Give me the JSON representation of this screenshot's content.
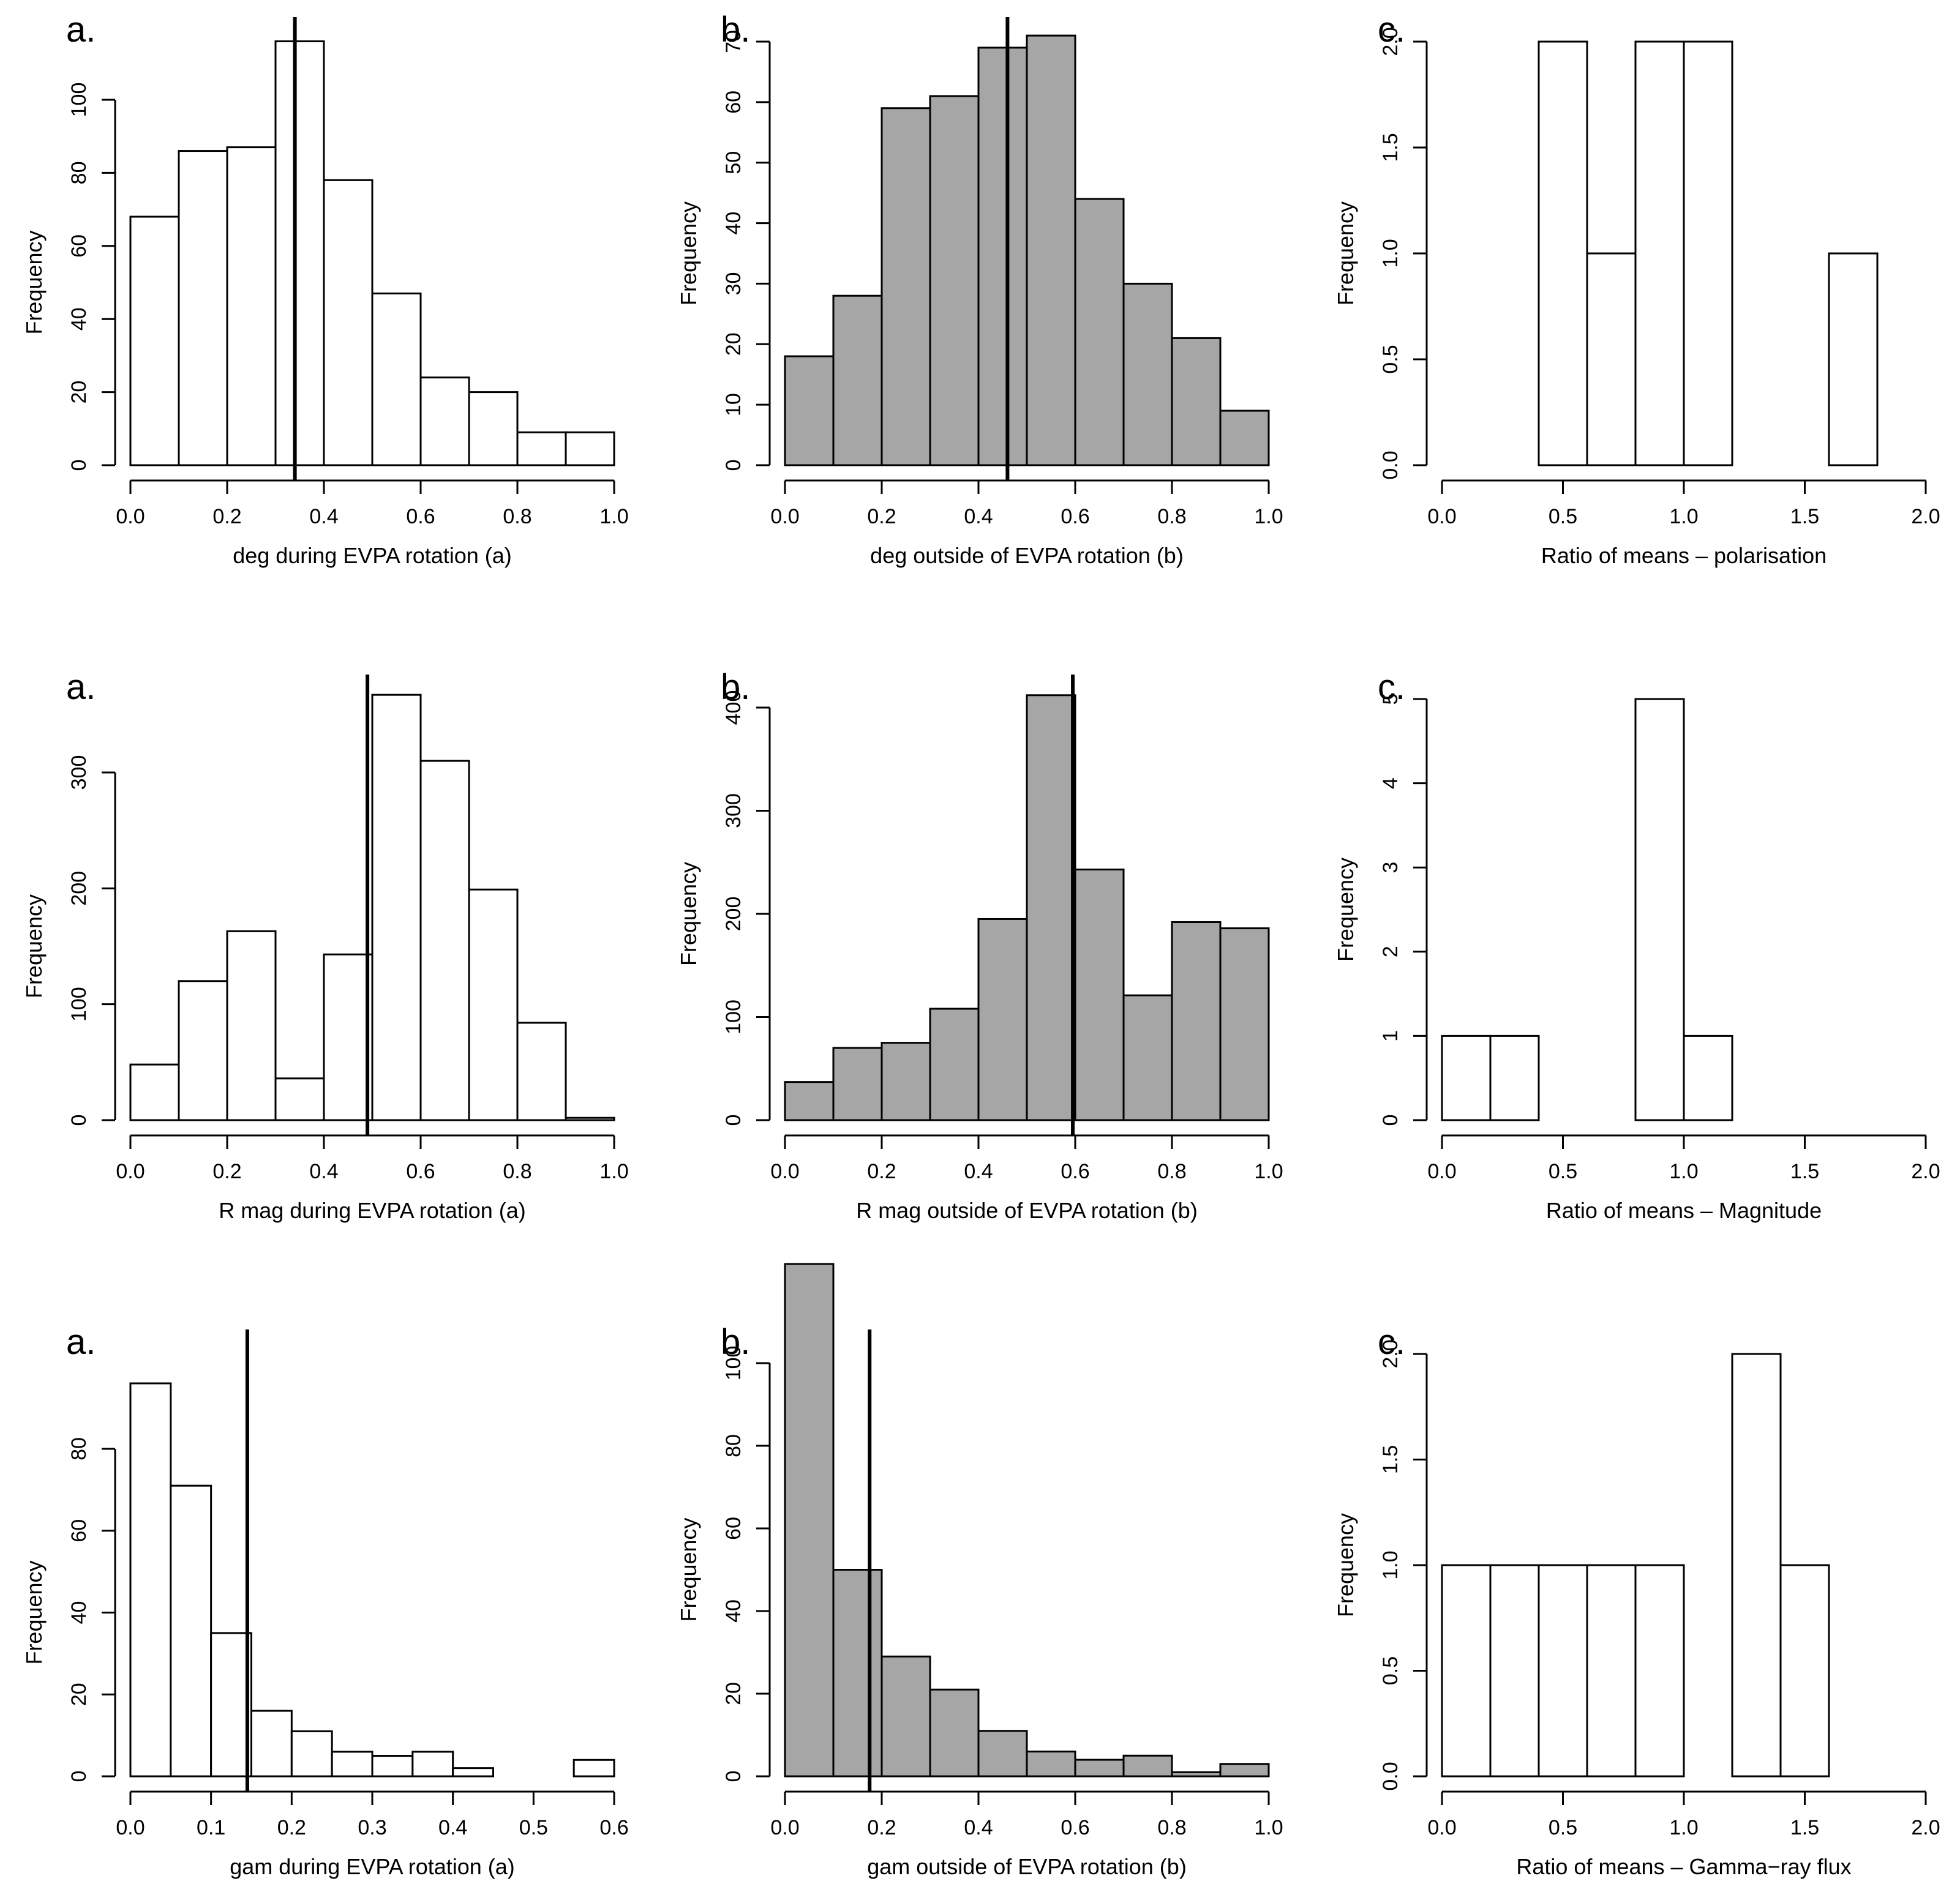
{
  "chart_data": [
    {
      "type": "bar",
      "panel": "a.",
      "xlabel": "deg during EVPA rotation (a)",
      "ylabel": "Frequency",
      "fill": "#ffffff",
      "xlim": [
        0,
        1
      ],
      "ylim": [
        0,
        100
      ],
      "xticks": [
        0,
        0.2,
        0.4,
        0.6,
        0.8,
        1
      ],
      "xtick_labels": [
        "0.0",
        "0.2",
        "0.4",
        "0.6",
        "0.8",
        "1.0"
      ],
      "yticks": [
        0,
        20,
        40,
        60,
        80,
        100
      ],
      "ytick_labels": [
        "0",
        "20",
        "40",
        "60",
        "80",
        "100"
      ],
      "bin_edges": [
        0,
        0.1,
        0.2,
        0.3,
        0.4,
        0.5,
        0.6,
        0.7,
        0.8,
        0.9,
        1.0
      ],
      "values": [
        68,
        86,
        87,
        116,
        78,
        47,
        24,
        20,
        9,
        9
      ],
      "mean_line": 0.34
    },
    {
      "type": "bar",
      "panel": "b.",
      "xlabel": "deg outside of EVPA rotation (b)",
      "ylabel": "Frequency",
      "fill": "#a6a6a6",
      "xlim": [
        0,
        1
      ],
      "ylim": [
        0,
        70
      ],
      "xticks": [
        0,
        0.2,
        0.4,
        0.6,
        0.8,
        1
      ],
      "xtick_labels": [
        "0.0",
        "0.2",
        "0.4",
        "0.6",
        "0.8",
        "1.0"
      ],
      "yticks": [
        0,
        10,
        20,
        30,
        40,
        50,
        60,
        70
      ],
      "ytick_labels": [
        "0",
        "10",
        "20",
        "30",
        "40",
        "50",
        "60",
        "70"
      ],
      "bin_edges": [
        0,
        0.1,
        0.2,
        0.3,
        0.4,
        0.5,
        0.6,
        0.7,
        0.8,
        0.9,
        1.0
      ],
      "values": [
        18,
        28,
        59,
        61,
        69,
        71,
        44,
        30,
        21,
        9
      ],
      "mean_line": 0.46
    },
    {
      "type": "bar",
      "panel": "c.",
      "xlabel": "Ratio of means –  polarisation",
      "ylabel": "Frequency",
      "fill": "#ffffff",
      "xlim": [
        0,
        2
      ],
      "ylim": [
        0,
        2
      ],
      "xticks": [
        0,
        0.5,
        1,
        1.5,
        2
      ],
      "xtick_labels": [
        "0.0",
        "0.5",
        "1.0",
        "1.5",
        "2.0"
      ],
      "yticks": [
        0,
        0.5,
        1,
        1.5,
        2
      ],
      "ytick_labels": [
        "0.0",
        "0.5",
        "1.0",
        "1.5",
        "2.0"
      ],
      "bin_edges": [
        0,
        0.2,
        0.4,
        0.6,
        0.8,
        1.0,
        1.2,
        1.4,
        1.6,
        1.8
      ],
      "values": [
        0,
        0,
        2,
        1,
        2,
        2,
        0,
        0,
        1
      ],
      "mean_line": null
    },
    {
      "type": "bar",
      "panel": "a.",
      "xlabel": "R mag during EVPA rotation (a)",
      "ylabel": "Frequency",
      "fill": "#ffffff",
      "xlim": [
        0,
        1
      ],
      "ylim": [
        0,
        300
      ],
      "xticks": [
        0,
        0.2,
        0.4,
        0.6,
        0.8,
        1
      ],
      "xtick_labels": [
        "0.0",
        "0.2",
        "0.4",
        "0.6",
        "0.8",
        "1.0"
      ],
      "yticks": [
        0,
        100,
        200,
        300
      ],
      "ytick_labels": [
        "0",
        "100",
        "200",
        "300"
      ],
      "bin_edges": [
        0,
        0.1,
        0.2,
        0.3,
        0.4,
        0.5,
        0.6,
        0.7,
        0.8,
        0.9,
        1.0
      ],
      "values": [
        48,
        120,
        163,
        36,
        143,
        367,
        310,
        199,
        84,
        2
      ],
      "mean_line": 0.49
    },
    {
      "type": "bar",
      "panel": "b.",
      "xlabel": "R mag outside of EVPA rotation (b)",
      "ylabel": "Frequency",
      "fill": "#a6a6a6",
      "xlim": [
        0,
        1
      ],
      "ylim": [
        0,
        400
      ],
      "xticks": [
        0,
        0.2,
        0.4,
        0.6,
        0.8,
        1
      ],
      "xtick_labels": [
        "0.0",
        "0.2",
        "0.4",
        "0.6",
        "0.8",
        "1.0"
      ],
      "yticks": [
        0,
        100,
        200,
        300,
        400
      ],
      "ytick_labels": [
        "0",
        "100",
        "200",
        "300",
        "400"
      ],
      "bin_edges": [
        0,
        0.1,
        0.2,
        0.3,
        0.4,
        0.5,
        0.6,
        0.7,
        0.8,
        0.9,
        1.0
      ],
      "values": [
        37,
        70,
        75,
        108,
        195,
        412,
        243,
        121,
        192,
        186
      ],
      "mean_line": 0.595
    },
    {
      "type": "bar",
      "panel": "c.",
      "xlabel": "Ratio of means –  Magnitude",
      "ylabel": "Frequency",
      "fill": "#ffffff",
      "xlim": [
        0,
        2
      ],
      "ylim": [
        0,
        5
      ],
      "xticks": [
        0,
        0.5,
        1,
        1.5,
        2
      ],
      "xtick_labels": [
        "0.0",
        "0.5",
        "1.0",
        "1.5",
        "2.0"
      ],
      "yticks": [
        0,
        1,
        2,
        3,
        4,
        5
      ],
      "ytick_labels": [
        "0",
        "1",
        "2",
        "3",
        "4",
        "5"
      ],
      "bin_edges": [
        0,
        0.2,
        0.4,
        0.6,
        0.8,
        1.0,
        1.2
      ],
      "values": [
        1,
        1,
        0,
        0,
        5,
        1
      ],
      "mean_line": null
    },
    {
      "type": "bar",
      "panel": "a.",
      "xlabel": "gam during EVPA rotation (a)",
      "ylabel": "Frequency",
      "fill": "#ffffff",
      "xlim": [
        0,
        0.6
      ],
      "ylim": [
        0,
        80
      ],
      "xticks": [
        0,
        0.1,
        0.2,
        0.3,
        0.4,
        0.5,
        0.6
      ],
      "xtick_labels": [
        "0.0",
        "0.1",
        "0.2",
        "0.3",
        "0.4",
        "0.5",
        "0.6"
      ],
      "yticks": [
        0,
        20,
        40,
        60,
        80
      ],
      "ytick_labels": [
        "0",
        "20",
        "40",
        "60",
        "80"
      ],
      "bin_edges": [
        0,
        0.05,
        0.1,
        0.15,
        0.2,
        0.25,
        0.3,
        0.35,
        0.4,
        0.45,
        0.5,
        0.55,
        0.6
      ],
      "values": [
        96,
        71,
        35,
        16,
        11,
        6,
        5,
        6,
        2,
        0,
        0,
        4
      ],
      "mean_line": 0.145
    },
    {
      "type": "bar",
      "panel": "b.",
      "xlabel": "gam outside of EVPA rotation (b)",
      "ylabel": "Frequency",
      "fill": "#a6a6a6",
      "xlim": [
        0,
        1
      ],
      "ylim": [
        0,
        100
      ],
      "xticks": [
        0,
        0.2,
        0.4,
        0.6,
        0.8,
        1
      ],
      "xtick_labels": [
        "0.0",
        "0.2",
        "0.4",
        "0.6",
        "0.8",
        "1.0"
      ],
      "yticks": [
        0,
        20,
        40,
        60,
        80,
        100
      ],
      "ytick_labels": [
        "0",
        "20",
        "40",
        "60",
        "80",
        "100"
      ],
      "bin_edges": [
        0,
        0.1,
        0.2,
        0.3,
        0.4,
        0.5,
        0.6,
        0.7,
        0.8,
        0.9,
        1.0
      ],
      "values": [
        124,
        50,
        29,
        21,
        11,
        6,
        4,
        5,
        1,
        3
      ],
      "mean_line": 0.175
    },
    {
      "type": "bar",
      "panel": "c.",
      "xlabel": "Ratio of means –  Gamma−ray flux",
      "ylabel": "Frequency",
      "fill": "#ffffff",
      "xlim": [
        0,
        2
      ],
      "ylim": [
        0,
        2
      ],
      "xticks": [
        0,
        0.5,
        1,
        1.5,
        2
      ],
      "xtick_labels": [
        "0.0",
        "0.5",
        "1.0",
        "1.5",
        "2.0"
      ],
      "yticks": [
        0,
        0.5,
        1,
        1.5,
        2
      ],
      "ytick_labels": [
        "0.0",
        "0.5",
        "1.0",
        "1.5",
        "2.0"
      ],
      "bin_edges": [
        0,
        0.2,
        0.4,
        0.6,
        0.8,
        1.0,
        1.2,
        1.4,
        1.6
      ],
      "values": [
        1,
        1,
        1,
        1,
        1,
        0,
        2,
        1
      ],
      "mean_line": null
    }
  ]
}
